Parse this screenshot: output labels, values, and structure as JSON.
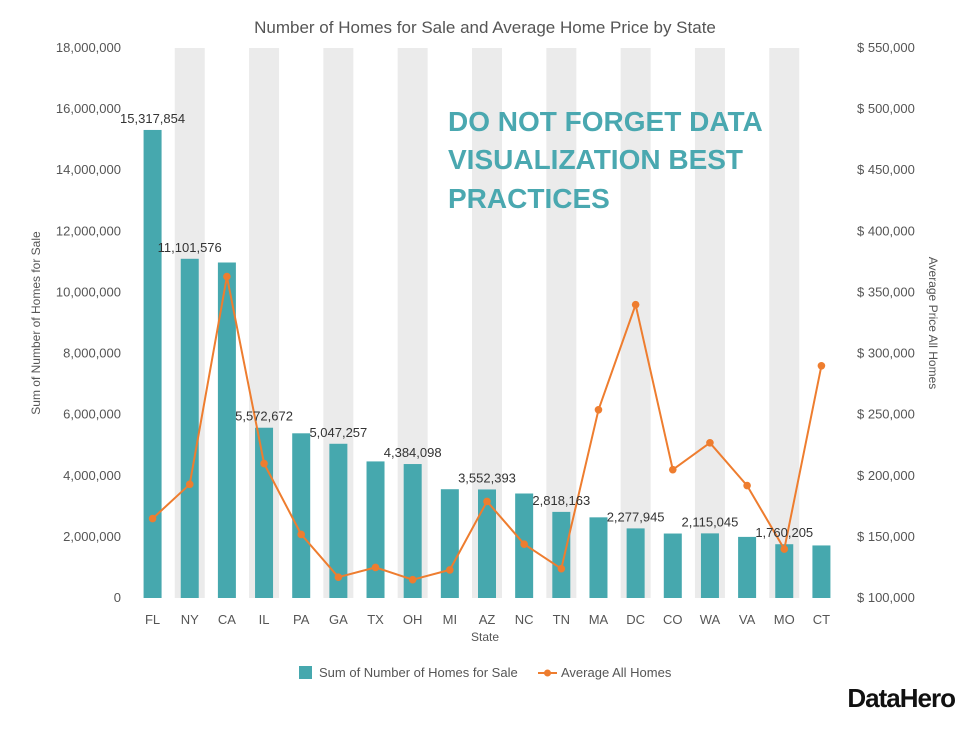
{
  "colors": {
    "bar": "#46a8ae",
    "line": "#ee7d2f",
    "band": "#ebebeb",
    "annotation": "#4aa8b0"
  },
  "brand": {
    "name": "DataHero"
  },
  "annotation": {
    "lines": [
      "DO NOT FORGET DATA",
      "VISUALIZATION BEST",
      "PRACTICES"
    ]
  },
  "chart_data": {
    "type": "bar",
    "combo": "bar-line dual axis",
    "title": "Number of Homes for Sale and Average Home Price by State",
    "xlabel": "State",
    "ylabel": "Sum of Number of Homes for Sale",
    "y2label": "Average Price All Homes",
    "categories": [
      "FL",
      "NY",
      "CA",
      "IL",
      "PA",
      "GA",
      "TX",
      "OH",
      "MI",
      "AZ",
      "NC",
      "TN",
      "MA",
      "DC",
      "CO",
      "WA",
      "VA",
      "MO",
      "CT"
    ],
    "ylim": [
      0,
      18000000
    ],
    "y_ticks": [
      "0",
      "2,000,000",
      "4,000,000",
      "6,000,000",
      "8,000,000",
      "10,000,000",
      "12,000,000",
      "14,000,000",
      "16,000,000",
      "18,000,000"
    ],
    "y2lim": [
      100000,
      550000
    ],
    "y2_ticks": [
      "$ 100,000",
      "$ 150,000",
      "$ 200,000",
      "$ 250,000",
      "$ 300,000",
      "$ 350,000",
      "$ 400,000",
      "$ 450,000",
      "$ 500,000",
      "$ 550,000"
    ],
    "grid": false,
    "alternating_bands": true,
    "legend_position": "bottom",
    "series": [
      {
        "name": "Sum of Number of Homes for Sale",
        "type": "bar",
        "axis": "left",
        "values": [
          15317854,
          11101576,
          10980000,
          5572672,
          5390000,
          5047257,
          4470000,
          4384098,
          3560000,
          3552393,
          3420000,
          2818163,
          2640000,
          2277945,
          2110000,
          2115045,
          2000000,
          1760205,
          1720000
        ],
        "labels": [
          "15,317,854",
          "11,101,576",
          "",
          "5,572,672",
          "",
          "5,047,257",
          "",
          "4,384,098",
          "",
          "3,552,393",
          "",
          "2,818,163",
          "",
          "2,277,945",
          "",
          "2,115,045",
          "",
          "1,760,205",
          ""
        ]
      },
      {
        "name": "Average All Homes",
        "type": "line",
        "axis": "right",
        "values": [
          165000,
          193000,
          363000,
          210000,
          152000,
          117000,
          125000,
          115000,
          123000,
          179000,
          144000,
          124000,
          254000,
          340000,
          205000,
          227000,
          192000,
          140000,
          290000
        ]
      }
    ]
  }
}
